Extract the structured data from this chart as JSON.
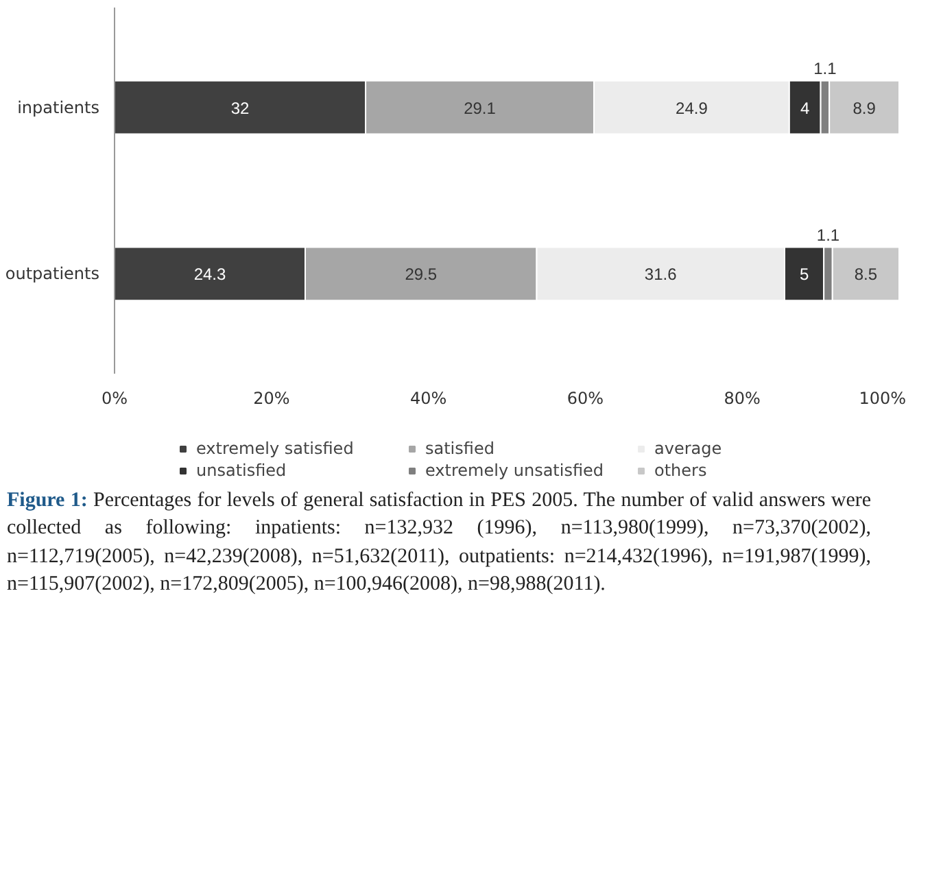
{
  "chart_data": {
    "type": "bar",
    "orientation": "horizontal",
    "stacked": true,
    "categories": [
      "inpatients",
      "outpatients"
    ],
    "series": [
      {
        "name": "extremely satisfied",
        "color": "#404040",
        "values": [
          32,
          24.3
        ]
      },
      {
        "name": "satisfied",
        "color": "#a6a6a6",
        "values": [
          29.1,
          29.5
        ]
      },
      {
        "name": "average",
        "color": "#ececec",
        "values": [
          24.9,
          31.6
        ]
      },
      {
        "name": "unsatisfied",
        "color": "#333333",
        "values": [
          4,
          5
        ]
      },
      {
        "name": "extremely unsatisfied",
        "color": "#7f7f7f",
        "values": [
          1.1,
          1.1
        ]
      },
      {
        "name": "others",
        "color": "#c8c8c8",
        "values": [
          8.9,
          8.5
        ]
      }
    ],
    "xlim": [
      0,
      100
    ],
    "xticks": [
      {
        "value": 0,
        "label": "0%"
      },
      {
        "value": 20,
        "label": "20%"
      },
      {
        "value": 40,
        "label": "40%"
      },
      {
        "value": 60,
        "label": "60%"
      },
      {
        "value": 80,
        "label": "80%"
      },
      {
        "value": 100,
        "label": "100%"
      }
    ],
    "data_labels": true,
    "grid": false,
    "legend": "bottom",
    "annotations": [
      "Figure 1: Percentages for levels of general satisfaction in PES 2005. The number of valid answers were collected as following: inpatients: n=132,932 (1996), n=113,980(1999), n=73,370(2002), n=112,719(2005), n=42,239(2008), n=51,632(2011), outpatients: n=214,432(1996), n=191,987(1999), n=115,907(2002), n=172,809(2005), n=100,946(2008), n=98,988(2011)."
    ]
  }
}
